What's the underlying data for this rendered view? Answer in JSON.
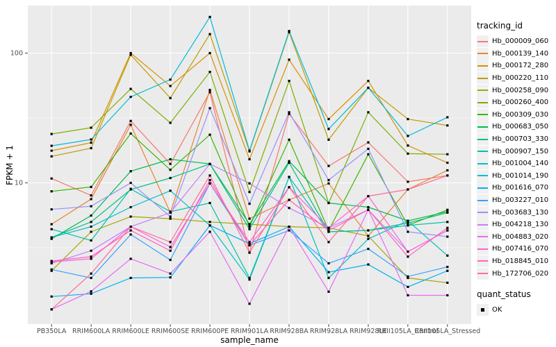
{
  "chart_data": {
    "type": "line",
    "xlabel": "sample_name",
    "ylabel": "FPKM + 1",
    "categories": [
      "PB350LA",
      "RRIM600LA",
      "RRIM600LE",
      "RRIM600SE",
      "RRIM600PE",
      "RRIM901LA",
      "RRIM928BA",
      "RRIM928LA",
      "RRIM928LE",
      "RRII105LA_Control",
      "RRII105LA_Stressed"
    ],
    "y_axis": {
      "scale": "log10",
      "ticks": [
        {
          "value": 100,
          "label": "100"
        },
        {
          "value": 10,
          "label": "10"
        }
      ],
      "minor_gridline_values": [
        31.62,
        3.162
      ],
      "range_approx": [
        0.85,
        230
      ],
      "grid": true
    },
    "panel_background": "#EBEBEB",
    "gridline_color": "#FFFFFF",
    "tick_text_color": "#4D4D4D",
    "marker": {
      "shape": "square",
      "color": "#000000",
      "size": 3.2
    },
    "series": [
      {
        "name": "Hb_000009_060",
        "color": "#F8766D",
        "values": [
          10.8,
          8.0,
          30,
          14,
          50,
          2.9,
          34,
          13.5,
          20.5,
          10.2,
          11.4
        ]
      },
      {
        "name": "Hb_000139_140",
        "color": "#EA8331",
        "values": [
          4.8,
          7.5,
          28,
          5.9,
          52,
          5.3,
          7.4,
          9.9,
          3.9,
          8.9,
          12.5
        ]
      },
      {
        "name": "Hb_000172_280",
        "color": "#D89000",
        "values": [
          17.7,
          20.4,
          100,
          55.8,
          100,
          15.2,
          89,
          31,
          61,
          19.4,
          14.3
        ]
      },
      {
        "name": "Hb_000220_110",
        "color": "#C09B00",
        "values": [
          16.0,
          18.5,
          97,
          45,
          140,
          17.5,
          145,
          21.5,
          54,
          31,
          27.7
        ]
      },
      {
        "name": "Hb_000258_090",
        "color": "#A3A500",
        "values": [
          2.1,
          4.2,
          5.5,
          5.3,
          5.0,
          4.8,
          4.6,
          4.5,
          3.9,
          1.85,
          1.7
        ]
      },
      {
        "name": "Hb_000260_400",
        "color": "#7CAE00",
        "values": [
          23.8,
          26.6,
          53,
          29,
          71.6,
          8.5,
          61,
          7.0,
          35,
          16.8,
          16.6
        ]
      },
      {
        "name": "Hb_000309_030",
        "color": "#39B600",
        "values": [
          8.6,
          9.3,
          24,
          12.6,
          23.5,
          4.6,
          21.5,
          4.3,
          16.6,
          4.7,
          6.2
        ]
      },
      {
        "name": "Hb_000683_050",
        "color": "#00BB4E",
        "values": [
          3.7,
          5.6,
          12.3,
          15.2,
          14,
          4.8,
          14.7,
          7.0,
          6.5,
          5.1,
          6.0
        ]
      },
      {
        "name": "Hb_000703_330",
        "color": "#00BF7D",
        "values": [
          3.8,
          5.0,
          8.9,
          10.9,
          14,
          4.4,
          14.3,
          4.2,
          4.3,
          4.9,
          5.9
        ]
      },
      {
        "name": "Hb_000907_150",
        "color": "#00C1A3",
        "values": [
          4.4,
          3.6,
          9.0,
          6.0,
          7.0,
          1.85,
          11.1,
          4.2,
          4.3,
          4.7,
          5.0
        ]
      },
      {
        "name": "Hb_001004_140",
        "color": "#00BFC4",
        "values": [
          3.8,
          4.6,
          6.5,
          8.7,
          4.7,
          1.8,
          11.1,
          1.85,
          3.7,
          5.1,
          2.75
        ]
      },
      {
        "name": "Hb_001014_190",
        "color": "#00BBDA",
        "values": [
          19.3,
          21.6,
          46,
          62.5,
          190,
          17.7,
          148,
          26,
          54,
          23,
          32
        ]
      },
      {
        "name": "Hb_001616_070",
        "color": "#00B0F6",
        "values": [
          1.33,
          1.4,
          1.85,
          1.87,
          4.7,
          3.4,
          4.6,
          2.05,
          2.35,
          1.58,
          2.1
        ]
      },
      {
        "name": "Hb_003227_010",
        "color": "#35A2FF",
        "values": [
          2.15,
          1.85,
          4.0,
          2.55,
          9.9,
          3.3,
          4.3,
          2.4,
          3.1,
          1.9,
          2.25
        ]
      },
      {
        "name": "Hb_003683_130",
        "color": "#9590FF",
        "values": [
          6.25,
          6.6,
          10,
          5.5,
          37.6,
          6.9,
          35,
          10.5,
          18.3,
          4.2,
          3.85
        ]
      },
      {
        "name": "Hb_004218_130",
        "color": "#C77CFF",
        "values": [
          2.4,
          3.0,
          4.6,
          5.9,
          14,
          9.9,
          6.4,
          4.5,
          6.2,
          2.95,
          4.3
        ]
      },
      {
        "name": "Hb_004883_020",
        "color": "#E76BF3",
        "values": [
          1.06,
          1.46,
          2.6,
          2.0,
          4.2,
          1.17,
          4.6,
          1.45,
          6.2,
          1.36,
          1.36
        ]
      },
      {
        "name": "Hb_007416_070",
        "color": "#FA62DB",
        "values": [
          2.46,
          2.6,
          4.6,
          3.2,
          9.9,
          3.5,
          9.25,
          4.5,
          7.9,
          2.95,
          4.3
        ]
      },
      {
        "name": "Hb_018845_010",
        "color": "#FF62BC",
        "values": [
          2.5,
          2.7,
          4.3,
          3.0,
          10.5,
          3.3,
          7.4,
          4.3,
          6.2,
          2.7,
          4.5
        ]
      },
      {
        "name": "Hb_172706_020",
        "color": "#FF6A98",
        "values": [
          1.06,
          2.0,
          4.6,
          3.5,
          11.4,
          2.9,
          9.25,
          3.5,
          7.9,
          8.9,
          11.4
        ]
      }
    ],
    "legend": {
      "tracking_title": "tracking_id",
      "quant_title": "quant_status",
      "quant_entries": [
        {
          "label": "OK",
          "symbol": "black-square"
        }
      ]
    }
  }
}
